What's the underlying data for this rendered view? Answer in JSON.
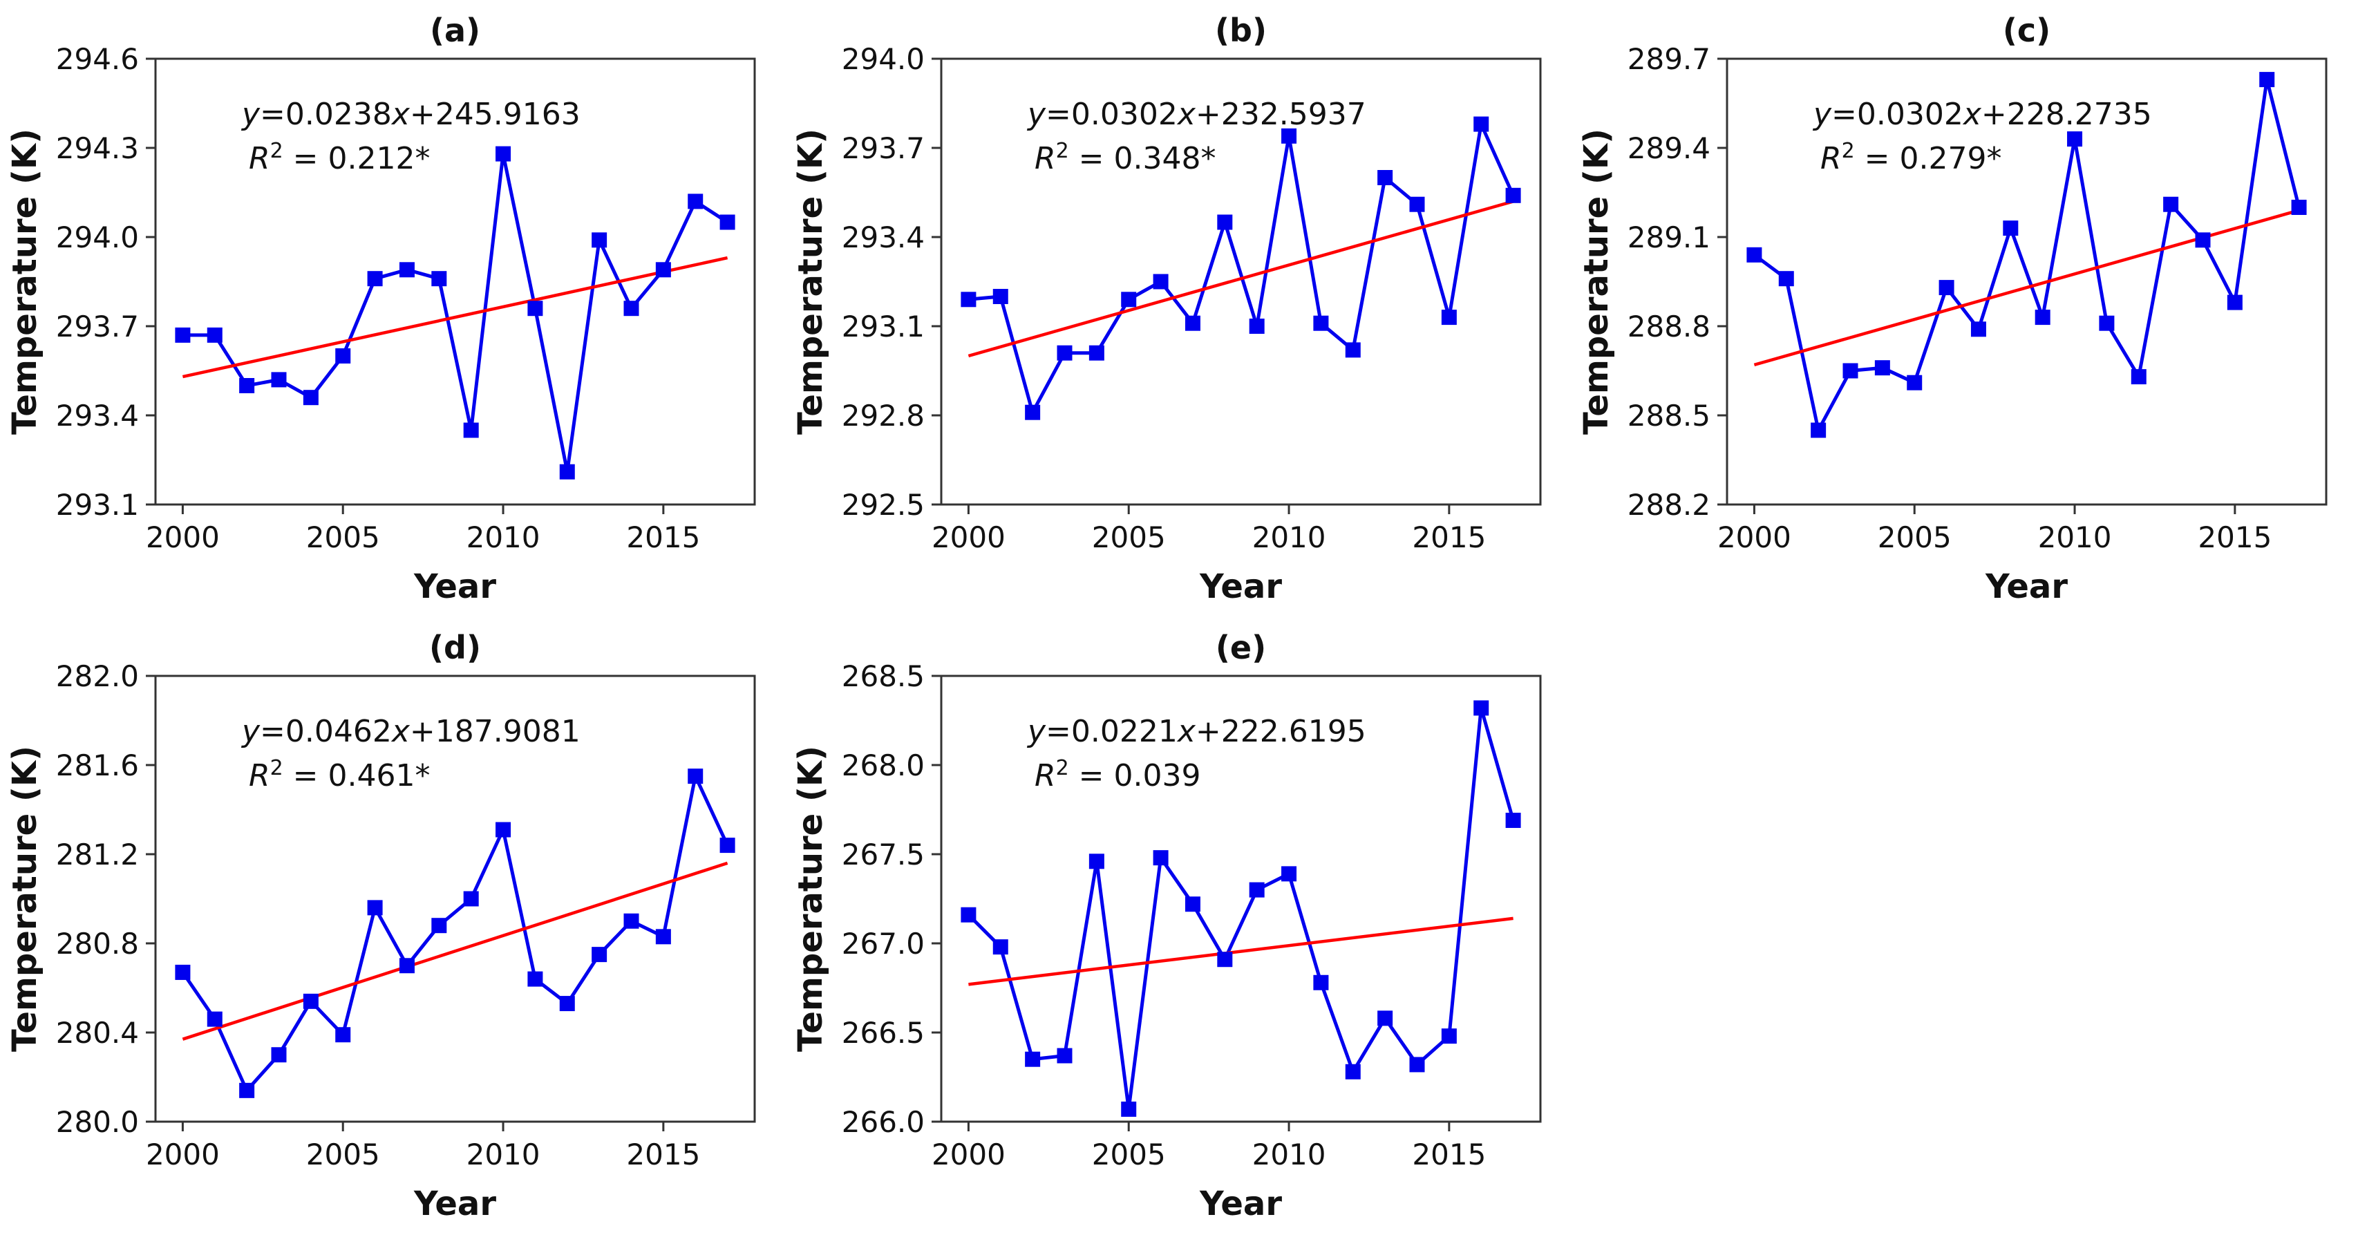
{
  "figure": {
    "background": "#ffffff",
    "rows": 2,
    "columns": 3,
    "layout": [
      [
        "a",
        "b",
        "c"
      ],
      [
        "d",
        "e",
        null
      ]
    ]
  },
  "colors": {
    "series_line": "#0000EE",
    "marker_fill": "#0000EE",
    "trend_line": "#FF0000",
    "spine": "#333333",
    "text": "#111111"
  },
  "chart_data": [
    {
      "type": "line",
      "panel": "a",
      "title": "(a)",
      "xlabel": "Year",
      "ylabel": "Temperature (K)",
      "equation": "y=0.0238x+245.9163",
      "r_squared_value": "0.212*",
      "xlim": [
        1999.15,
        2017.85
      ],
      "ylim": [
        293.1,
        294.6
      ],
      "xtick_values": [
        2000,
        2005,
        2010,
        2015
      ],
      "xtick_labels": [
        "2000",
        "2005",
        "2010",
        "2015"
      ],
      "ytick_values": [
        293.1,
        293.4,
        293.7,
        294.0,
        294.3,
        294.6
      ],
      "ytick_labels": [
        "293.1",
        "293.4",
        "293.7",
        "294.0",
        "294.3",
        "294.6"
      ],
      "x": [
        2000,
        2001,
        2002,
        2003,
        2004,
        2005,
        2006,
        2007,
        2008,
        2009,
        2010,
        2011,
        2012,
        2013,
        2014,
        2015,
        2016,
        2017
      ],
      "values": [
        293.67,
        293.67,
        293.5,
        293.52,
        293.46,
        293.6,
        293.86,
        293.89,
        293.86,
        293.35,
        294.28,
        293.76,
        293.21,
        293.99,
        293.76,
        293.89,
        294.12,
        294.05
      ],
      "trend": {
        "x": [
          2000,
          2017
        ],
        "y": [
          293.53,
          293.93
        ]
      },
      "legend": "none",
      "grid": false
    },
    {
      "type": "line",
      "panel": "b",
      "title": "(b)",
      "xlabel": "Year",
      "ylabel": "Temperature (K)",
      "equation": "y=0.0302x+232.5937",
      "r_squared_value": "0.348*",
      "xlim": [
        1999.15,
        2017.85
      ],
      "ylim": [
        292.5,
        294.0
      ],
      "xtick_values": [
        2000,
        2005,
        2010,
        2015
      ],
      "xtick_labels": [
        "2000",
        "2005",
        "2010",
        "2015"
      ],
      "ytick_values": [
        292.5,
        292.8,
        293.1,
        293.4,
        293.7,
        294.0
      ],
      "ytick_labels": [
        "292.5",
        "292.8",
        "293.1",
        "293.4",
        "293.7",
        "294.0"
      ],
      "x": [
        2000,
        2001,
        2002,
        2003,
        2004,
        2005,
        2006,
        2007,
        2008,
        2009,
        2010,
        2011,
        2012,
        2013,
        2014,
        2015,
        2016,
        2017
      ],
      "values": [
        293.19,
        293.2,
        292.81,
        293.01,
        293.01,
        293.19,
        293.25,
        293.11,
        293.45,
        293.1,
        293.74,
        293.11,
        293.02,
        293.6,
        293.51,
        293.13,
        293.78,
        293.54
      ],
      "trend": {
        "x": [
          2000,
          2017
        ],
        "y": [
          293.0,
          293.52
        ]
      },
      "legend": "none",
      "grid": false
    },
    {
      "type": "line",
      "panel": "c",
      "title": "(c)",
      "xlabel": "Year",
      "ylabel": "Temperature (K)",
      "equation": "y=0.0302x+228.2735",
      "r_squared_value": "0.279*",
      "xlim": [
        1999.15,
        2017.85
      ],
      "ylim": [
        288.2,
        289.7
      ],
      "xtick_values": [
        2000,
        2005,
        2010,
        2015
      ],
      "xtick_labels": [
        "2000",
        "2005",
        "2010",
        "2015"
      ],
      "ytick_values": [
        288.2,
        288.5,
        288.8,
        289.1,
        289.4,
        289.7
      ],
      "ytick_labels": [
        "288.2",
        "288.5",
        "288.8",
        "289.1",
        "289.4",
        "289.7"
      ],
      "x": [
        2000,
        2001,
        2002,
        2003,
        2004,
        2005,
        2006,
        2007,
        2008,
        2009,
        2010,
        2011,
        2012,
        2013,
        2014,
        2015,
        2016,
        2017
      ],
      "values": [
        289.04,
        288.96,
        288.45,
        288.65,
        288.66,
        288.61,
        288.93,
        288.79,
        289.13,
        288.83,
        289.43,
        288.81,
        288.63,
        289.21,
        289.09,
        288.88,
        289.63,
        289.2
      ],
      "trend": {
        "x": [
          2000,
          2017
        ],
        "y": [
          288.67,
          289.19
        ]
      },
      "legend": "none",
      "grid": false
    },
    {
      "type": "line",
      "panel": "d",
      "title": "(d)",
      "xlabel": "Year",
      "ylabel": "Temperature (K)",
      "equation": "y=0.0462x+187.9081",
      "r_squared_value": "0.461*",
      "xlim": [
        1999.15,
        2017.85
      ],
      "ylim": [
        280.0,
        282.0
      ],
      "xtick_values": [
        2000,
        2005,
        2010,
        2015
      ],
      "xtick_labels": [
        "2000",
        "2005",
        "2010",
        "2015"
      ],
      "ytick_values": [
        280.0,
        280.4,
        280.8,
        281.2,
        281.6,
        282.0
      ],
      "ytick_labels": [
        "280.0",
        "280.4",
        "280.8",
        "281.2",
        "281.6",
        "282.0"
      ],
      "x": [
        2000,
        2001,
        2002,
        2003,
        2004,
        2005,
        2006,
        2007,
        2008,
        2009,
        2010,
        2011,
        2012,
        2013,
        2014,
        2015,
        2016,
        2017
      ],
      "values": [
        280.67,
        280.46,
        280.14,
        280.3,
        280.54,
        280.39,
        280.96,
        280.7,
        280.88,
        281.0,
        281.31,
        280.64,
        280.53,
        280.75,
        280.9,
        280.83,
        281.55,
        281.24
      ],
      "trend": {
        "x": [
          2000,
          2017
        ],
        "y": [
          280.37,
          281.16
        ]
      },
      "legend": "none",
      "grid": false
    },
    {
      "type": "line",
      "panel": "e",
      "title": "(e)",
      "xlabel": "Year",
      "ylabel": "Temperature (K)",
      "equation": "y=0.0221x+222.6195",
      "r_squared_value": "0.039",
      "xlim": [
        1999.15,
        2017.85
      ],
      "ylim": [
        266.0,
        268.5
      ],
      "xtick_values": [
        2000,
        2005,
        2010,
        2015
      ],
      "xtick_labels": [
        "2000",
        "2005",
        "2010",
        "2015"
      ],
      "ytick_values": [
        266.0,
        266.5,
        267.0,
        267.5,
        268.0,
        268.5
      ],
      "ytick_labels": [
        "266.0",
        "266.5",
        "267.0",
        "267.5",
        "268.0",
        "268.5"
      ],
      "x": [
        2000,
        2001,
        2002,
        2003,
        2004,
        2005,
        2006,
        2007,
        2008,
        2009,
        2010,
        2011,
        2012,
        2013,
        2014,
        2015,
        2016,
        2017
      ],
      "values": [
        267.16,
        266.98,
        266.35,
        266.37,
        267.46,
        266.07,
        267.48,
        267.22,
        266.91,
        267.3,
        267.39,
        266.78,
        266.28,
        266.58,
        266.32,
        266.48,
        268.32,
        267.69
      ],
      "trend": {
        "x": [
          2000,
          2017
        ],
        "y": [
          266.77,
          267.14
        ]
      },
      "legend": "none",
      "grid": false
    }
  ]
}
